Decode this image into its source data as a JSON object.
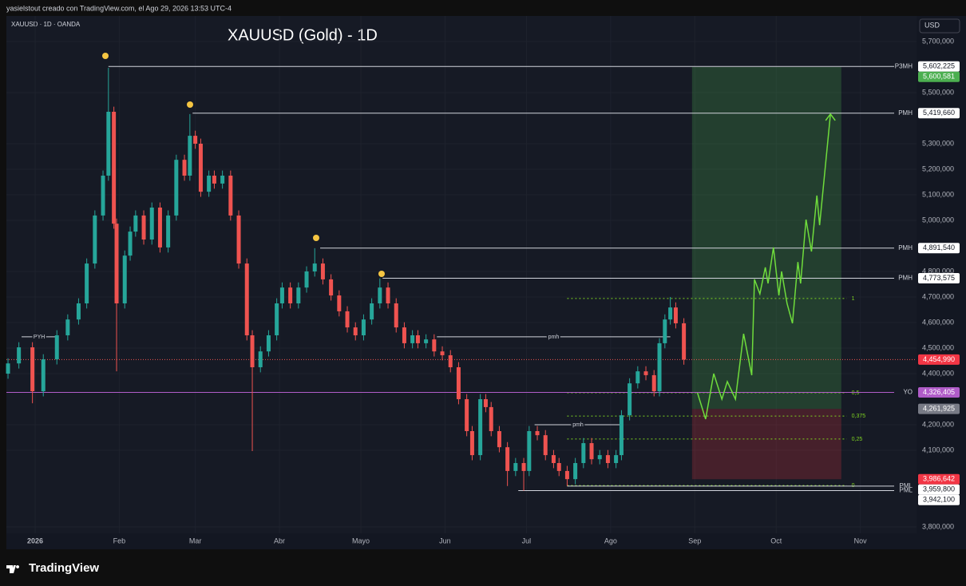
{
  "header": {
    "attribution": "yasielstout creado con TradingView.com, el Ago 29, 2026 13:53 UTC-4",
    "symbol": "XAUUSD · 1D · OANDA",
    "currency": "USD",
    "logo": "TradingView"
  },
  "chart_data": {
    "type": "candlestick",
    "title": "XAUUSD (Gold) - 1D",
    "up_color": "#26a69a",
    "down_color": "#ef5350",
    "xlim": [
      -10.6,
      324.7
    ],
    "xticks": [
      {
        "value": 0,
        "label": "2026"
      },
      {
        "value": 31,
        "label": "Feb"
      },
      {
        "value": 59,
        "label": "Mar"
      },
      {
        "value": 90,
        "label": "Abr"
      },
      {
        "value": 120,
        "label": "Mayo"
      },
      {
        "value": 151,
        "label": "Jun"
      },
      {
        "value": 181,
        "label": "Jul"
      },
      {
        "value": 212,
        "label": "Ago"
      },
      {
        "value": 243,
        "label": "Sep"
      },
      {
        "value": 273,
        "label": "Oct"
      },
      {
        "value": 304,
        "label": "Nov"
      }
    ],
    "ylim": [
      3775000,
      5800000
    ],
    "yticks": [
      {
        "value": 5700000,
        "label": "5,700,000"
      },
      {
        "value": 5500000,
        "label": "5,500,000"
      },
      {
        "value": 5300000,
        "label": "5,300,000"
      },
      {
        "value": 5200000,
        "label": "5,200,000"
      },
      {
        "value": 5100000,
        "label": "5,100,000"
      },
      {
        "value": 5000000,
        "label": "5,000,000"
      },
      {
        "value": 4800000,
        "label": "4,800,000"
      },
      {
        "value": 4700000,
        "label": "4,700,000"
      },
      {
        "value": 4600000,
        "label": "4,600,000"
      },
      {
        "value": 4500000,
        "label": "4,500,000"
      },
      {
        "value": 4400000,
        "label": "4,400,000"
      },
      {
        "value": 4200000,
        "label": "4,200,000"
      },
      {
        "value": 4100000,
        "label": "4,100,000"
      },
      {
        "value": 3800000,
        "label": "3,800,000"
      }
    ],
    "x": [
      -10,
      -6,
      -1,
      3,
      8,
      12,
      16,
      19,
      22,
      25,
      27,
      29,
      30,
      33,
      35,
      37,
      40,
      43,
      46,
      49,
      52,
      55,
      57,
      59,
      61,
      64,
      66,
      69,
      72,
      75,
      78,
      80,
      83,
      86,
      89,
      91,
      94,
      97,
      100,
      103,
      106,
      109,
      112,
      115,
      118,
      121,
      124,
      127,
      130,
      133,
      136,
      139,
      141,
      144,
      147,
      150,
      153,
      156,
      159,
      161,
      164,
      166,
      168,
      171,
      174,
      177,
      180,
      182,
      185,
      188,
      191,
      193,
      196,
      199,
      202,
      205,
      208,
      211,
      214,
      216,
      219,
      222,
      225,
      228,
      230,
      232,
      234,
      236,
      239
    ],
    "open": [
      4400000,
      4440000,
      4503000,
      4331000,
      4456000,
      4550000,
      4612000,
      4675000,
      4831000,
      5019000,
      5175000,
      5425000,
      4987000,
      4675000,
      4862000,
      4956000,
      5019000,
      4925000,
      5050000,
      4894000,
      5019000,
      5237000,
      5175000,
      5331000,
      5300000,
      5112000,
      5175000,
      5144000,
      5175000,
      5019000,
      4831000,
      4550000,
      4425000,
      4487000,
      4550000,
      4675000,
      4737000,
      4675000,
      4737000,
      4800000,
      4831000,
      4769000,
      4706000,
      4644000,
      4581000,
      4550000,
      4612000,
      4675000,
      4737000,
      4675000,
      4581000,
      4519000,
      4550000,
      4519000,
      4534000,
      4487000,
      4472000,
      4425000,
      4300000,
      4175000,
      4081000,
      4300000,
      4269000,
      4175000,
      4112000,
      4019000,
      4050000,
      4019000,
      4175000,
      4159000,
      4081000,
      4050000,
      4019000,
      3987000,
      4050000,
      4128000,
      4065000,
      4081000,
      4050000,
      4081000,
      4237000,
      4362000,
      4409000,
      4394000,
      4331000,
      4519000,
      4612000,
      4659000,
      4597000
    ],
    "high": [
      4460000,
      4523000,
      4523000,
      4476000,
      4570000,
      4632000,
      4695000,
      4851000,
      5039000,
      5195000,
      5597000,
      5445000,
      5007000,
      4882000,
      4976000,
      5039000,
      5039000,
      5070000,
      5070000,
      5039000,
      5257000,
      5257000,
      5416000,
      5351000,
      5320000,
      5195000,
      5195000,
      5195000,
      5195000,
      5039000,
      4851000,
      4570000,
      4507000,
      4570000,
      4695000,
      4757000,
      4757000,
      4757000,
      4820000,
      4891000,
      4851000,
      4789000,
      4726000,
      4664000,
      4601000,
      4632000,
      4695000,
      4773000,
      4757000,
      4695000,
      4601000,
      4570000,
      4570000,
      4554000,
      4554000,
      4507000,
      4492000,
      4445000,
      4320000,
      4195000,
      4320000,
      4320000,
      4289000,
      4195000,
      4132000,
      4070000,
      4070000,
      4195000,
      4195000,
      4179000,
      4101000,
      4070000,
      4039000,
      4070000,
      4148000,
      4148000,
      4101000,
      4101000,
      4101000,
      4257000,
      4382000,
      4429000,
      4429000,
      4414000,
      4539000,
      4632000,
      4700000,
      4679000,
      4617000
    ],
    "low": [
      4380000,
      4420000,
      4284000,
      4311000,
      4436000,
      4530000,
      4592000,
      4655000,
      4811000,
      4999000,
      5155000,
      4967000,
      4409000,
      4655000,
      4842000,
      4936000,
      4905000,
      4905000,
      4874000,
      4874000,
      4999000,
      5155000,
      5155000,
      5280000,
      5092000,
      5092000,
      5124000,
      5124000,
      4999000,
      4811000,
      4530000,
      4097000,
      4405000,
      4467000,
      4530000,
      4655000,
      4655000,
      4655000,
      4717000,
      4780000,
      4749000,
      4686000,
      4624000,
      4561000,
      4530000,
      4530000,
      4592000,
      4655000,
      4655000,
      4561000,
      4499000,
      4499000,
      4499000,
      4499000,
      4467000,
      4452000,
      4405000,
      4280000,
      4155000,
      4061000,
      4061000,
      4249000,
      4155000,
      4092000,
      3960000,
      3999000,
      3942000,
      3999000,
      4139000,
      4061000,
      4030000,
      3999000,
      3960000,
      3967000,
      4030000,
      4045000,
      4045000,
      4030000,
      4030000,
      4061000,
      4217000,
      4342000,
      4374000,
      4311000,
      4311000,
      4499000,
      4592000,
      4577000,
      4435000
    ],
    "close": [
      4440000,
      4503000,
      4331000,
      4456000,
      4550000,
      4612000,
      4675000,
      4831000,
      5019000,
      5175000,
      5425000,
      4987000,
      4675000,
      4862000,
      4956000,
      5019000,
      4925000,
      5050000,
      4894000,
      5019000,
      5237000,
      5175000,
      5331000,
      5300000,
      5112000,
      5175000,
      5144000,
      5175000,
      5019000,
      4831000,
      4550000,
      4425000,
      4487000,
      4550000,
      4675000,
      4737000,
      4675000,
      4737000,
      4800000,
      4831000,
      4769000,
      4706000,
      4644000,
      4581000,
      4550000,
      4612000,
      4675000,
      4737000,
      4675000,
      4581000,
      4519000,
      4550000,
      4519000,
      4534000,
      4487000,
      4472000,
      4425000,
      4300000,
      4175000,
      4081000,
      4300000,
      4269000,
      4175000,
      4112000,
      4019000,
      4050000,
      4019000,
      4175000,
      4159000,
      4081000,
      4050000,
      4019000,
      3987000,
      4050000,
      4128000,
      4065000,
      4081000,
      4050000,
      4081000,
      4237000,
      4362000,
      4409000,
      4394000,
      4331000,
      4519000,
      4612000,
      4659000,
      4597000,
      4455000
    ],
    "last_price": {
      "value": 4454990,
      "label": "4,454,990"
    },
    "position": {
      "start": 242,
      "end": 297,
      "entry": 4261925,
      "entry_label": "4,261,925",
      "target": 5600581,
      "target_label": "5,600,581",
      "stop": 3986642,
      "stop_label": "3,986,642"
    },
    "projection": {
      "color": "#6fdc3c",
      "x": [
        244,
        247,
        250,
        253,
        255,
        258,
        261,
        264,
        265,
        267,
        269,
        270,
        272,
        274,
        275,
        277,
        279,
        281,
        282,
        284,
        286,
        288,
        289,
        293
      ],
      "values": [
        4325000,
        4222000,
        4400000,
        4300000,
        4369000,
        4300000,
        4556000,
        4394000,
        4769000,
        4712000,
        4816000,
        4753000,
        4894000,
        4706000,
        4800000,
        4675000,
        4597000,
        4837000,
        4753000,
        5003000,
        4878000,
        5097000,
        4981000,
        5416000
      ]
    },
    "levels": [
      {
        "name": "P3MH",
        "value": 5602225,
        "value_label": "5,602,225",
        "start": 27
      },
      {
        "name": "PMH",
        "value": 5419660,
        "value_label": "5,419,660",
        "start": 58
      },
      {
        "name": "PMH",
        "value": 4891540,
        "value_label": "4,891,540",
        "start": 105
      },
      {
        "name": "PMH",
        "value": 4773575,
        "value_label": "4,773,575",
        "start": 128
      },
      {
        "name": "YO",
        "value": 4326405,
        "value_label": "4,326,405",
        "start": -10.6,
        "color": "#b05cc8"
      },
      {
        "name": "PML",
        "value": 3959800,
        "value_label": "3,959,800",
        "start": 196
      },
      {
        "name": "PML",
        "value": 3942100,
        "value_label": "3,942,100",
        "start": 178
      }
    ],
    "short_levels": [
      {
        "name": "PYH",
        "value": 4544000,
        "start": -5,
        "end": 8
      },
      {
        "name": "pmh",
        "value": 4544000,
        "start": 148,
        "end": 234
      },
      {
        "name": "pmh",
        "value": 4200000,
        "start": 184,
        "end": 216
      }
    ],
    "fib": {
      "start": 196,
      "end": 299,
      "color": "#7ed321",
      "levels": [
        {
          "label": "1",
          "value": 4694000
        },
        {
          "label": "0,5",
          "value": 4325000
        },
        {
          "label": "0,375",
          "value": 4234000
        },
        {
          "label": "0,25",
          "value": 4144000
        },
        {
          "label": "0",
          "value": 3962000
        }
      ]
    }
  }
}
